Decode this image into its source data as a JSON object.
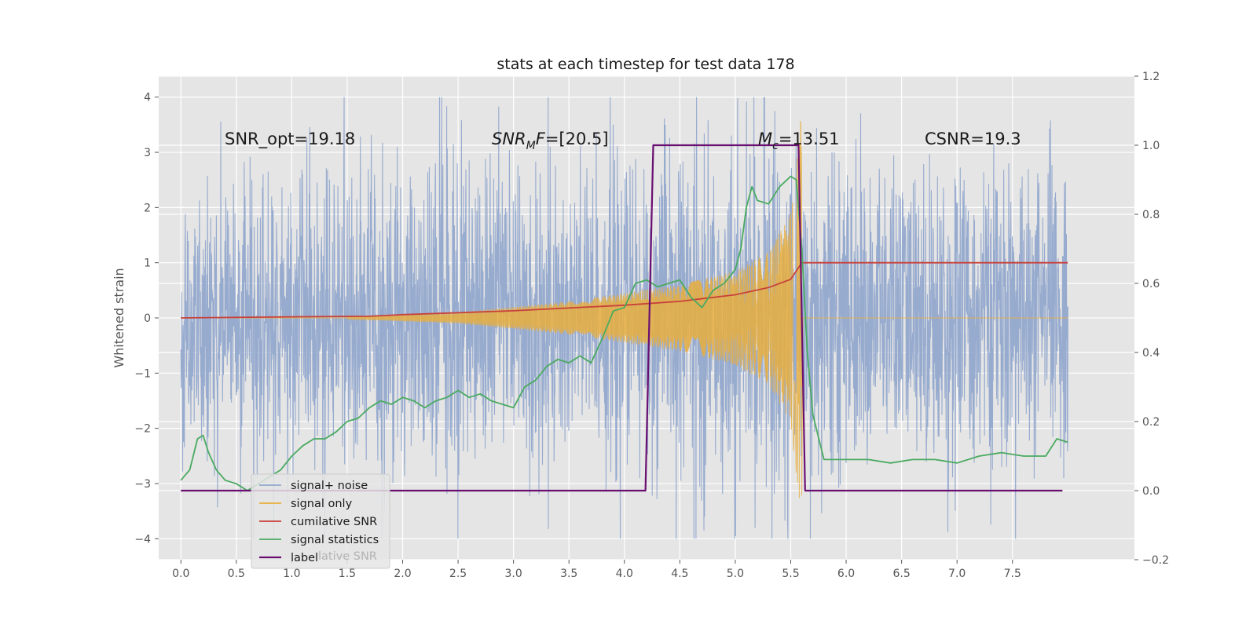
{
  "chart_data": {
    "type": "line",
    "title": "stats at each timestep for test data 178",
    "ylabel": "Whitened strain",
    "xlabel": "",
    "xlim": [
      -0.2,
      8.6
    ],
    "ylim": [
      -4.38,
      4.38
    ],
    "y2lim": [
      -0.2,
      1.2
    ],
    "xticks": [
      "0.0",
      "0.5",
      "1.0",
      "1.5",
      "2.0",
      "2.5",
      "3.0",
      "3.5",
      "4.0",
      "4.5",
      "5.0",
      "5.5",
      "6.0",
      "6.5",
      "7.0",
      "7.5"
    ],
    "xtick_values": [
      0,
      0.5,
      1,
      1.5,
      2,
      2.5,
      3,
      3.5,
      4,
      4.5,
      5,
      5.5,
      6,
      6.5,
      7,
      7.5
    ],
    "yticks": [
      "−4",
      "−3",
      "−2",
      "−1",
      "0",
      "1",
      "2",
      "3",
      "4"
    ],
    "ytick_values": [
      -4,
      -3,
      -2,
      -1,
      0,
      1,
      2,
      3,
      4
    ],
    "y2ticks": [
      "−0.2",
      "0.0",
      "0.2",
      "0.4",
      "0.6",
      "0.8",
      "1.0",
      "1.2"
    ],
    "y2tick_values": [
      -0.2,
      0,
      0.2,
      0.4,
      0.6,
      0.8,
      1.0,
      1.2
    ],
    "grid": true,
    "annotations": [
      {
        "text": "SNR_opt=19.18",
        "x": 0.2,
        "y": 3.25
      },
      {
        "text": "SNR_MF=[20.5]",
        "x": 2.6,
        "y": 3.25
      },
      {
        "text": "M_c=13.51",
        "x": 5.0,
        "y": 3.25
      },
      {
        "text": "CSNR=19.3",
        "x": 6.5,
        "y": 3.25
      }
    ],
    "annotation_parts": {
      "snr_mf_main": "SNR",
      "snr_mf_sub": "M",
      "snr_mf_rest": "F=[20.5]",
      "mc_main": "M",
      "mc_sub": "c",
      "mc_rest": "=13.51"
    },
    "legend": {
      "placement": "lower-left",
      "entries": [
        "signal+ noise",
        "signal only",
        "cumilative SNR",
        "signal statistics",
        "label"
      ],
      "ghost_text": "lative SNR"
    },
    "series": [
      {
        "name": "signal+ noise",
        "axis": "left",
        "color": "#92a8cd",
        "style": "noise",
        "x_range": [
          0.0,
          8.0
        ],
        "envelope": {
          "x": [
            0.0,
            1.0,
            2.0,
            3.0,
            4.0,
            5.0,
            5.5,
            5.6,
            6.0,
            7.0,
            8.0
          ],
          "amp": [
            2.0,
            2.4,
            2.5,
            2.5,
            2.5,
            2.6,
            3.2,
            2.6,
            2.4,
            2.4,
            2.2
          ]
        }
      },
      {
        "name": "signal only",
        "axis": "left",
        "color": "#e8ae3e",
        "style": "chirp",
        "x_range": [
          1.5,
          5.6
        ],
        "envelope": {
          "x": [
            1.5,
            2.5,
            3.5,
            4.0,
            4.5,
            5.0,
            5.3,
            5.5,
            5.6
          ],
          "amp": [
            0.02,
            0.1,
            0.3,
            0.45,
            0.6,
            0.85,
            1.2,
            1.9,
            3.8
          ]
        },
        "after_value": 0
      },
      {
        "name": "cumilative SNR",
        "axis": "left",
        "color": "#c8403b",
        "x": [
          0.0,
          1.0,
          1.7,
          2.0,
          3.0,
          4.0,
          4.5,
          5.0,
          5.3,
          5.5,
          5.6,
          5.61,
          8.0
        ],
        "y": [
          0.0,
          0.02,
          0.03,
          0.06,
          0.13,
          0.23,
          0.3,
          0.42,
          0.55,
          0.7,
          1.0,
          1.0,
          1.0
        ]
      },
      {
        "name": "signal statistics",
        "axis": "right",
        "color": "#4aaa60",
        "x": [
          0.0,
          0.08,
          0.15,
          0.2,
          0.25,
          0.32,
          0.4,
          0.5,
          0.6,
          0.7,
          0.8,
          0.9,
          1.0,
          1.1,
          1.2,
          1.3,
          1.4,
          1.5,
          1.6,
          1.7,
          1.8,
          1.9,
          2.0,
          2.1,
          2.2,
          2.3,
          2.4,
          2.5,
          2.6,
          2.7,
          2.8,
          2.9,
          3.0,
          3.05,
          3.1,
          3.2,
          3.3,
          3.4,
          3.5,
          3.6,
          3.7,
          3.8,
          3.9,
          4.0,
          4.1,
          4.2,
          4.3,
          4.4,
          4.5,
          4.6,
          4.7,
          4.8,
          4.9,
          5.0,
          5.05,
          5.1,
          5.15,
          5.2,
          5.3,
          5.4,
          5.5,
          5.55,
          5.6,
          5.65,
          5.7,
          5.8,
          5.9,
          6.0,
          6.2,
          6.4,
          6.6,
          6.8,
          7.0,
          7.2,
          7.4,
          7.6,
          7.8,
          7.9,
          8.0
        ],
        "y": [
          0.03,
          0.06,
          0.15,
          0.16,
          0.11,
          0.06,
          0.03,
          0.02,
          0.0,
          0.02,
          0.04,
          0.06,
          0.1,
          0.13,
          0.15,
          0.15,
          0.17,
          0.2,
          0.21,
          0.24,
          0.26,
          0.25,
          0.27,
          0.26,
          0.24,
          0.26,
          0.27,
          0.29,
          0.27,
          0.28,
          0.26,
          0.25,
          0.24,
          0.27,
          0.3,
          0.32,
          0.36,
          0.38,
          0.37,
          0.39,
          0.37,
          0.44,
          0.52,
          0.53,
          0.6,
          0.61,
          0.59,
          0.6,
          0.61,
          0.56,
          0.53,
          0.58,
          0.6,
          0.64,
          0.7,
          0.82,
          0.88,
          0.84,
          0.83,
          0.88,
          0.91,
          0.9,
          0.7,
          0.4,
          0.22,
          0.09,
          0.09,
          0.09,
          0.09,
          0.08,
          0.09,
          0.09,
          0.08,
          0.1,
          0.11,
          0.1,
          0.1,
          0.15,
          0.14
        ]
      },
      {
        "name": "label",
        "axis": "right",
        "color": "#6a0f72",
        "x": [
          0.0,
          4.19,
          4.26,
          5.57,
          5.63,
          7.95
        ],
        "y": [
          0.0,
          0.0,
          1.0,
          1.0,
          0.0,
          0.0
        ]
      }
    ]
  }
}
